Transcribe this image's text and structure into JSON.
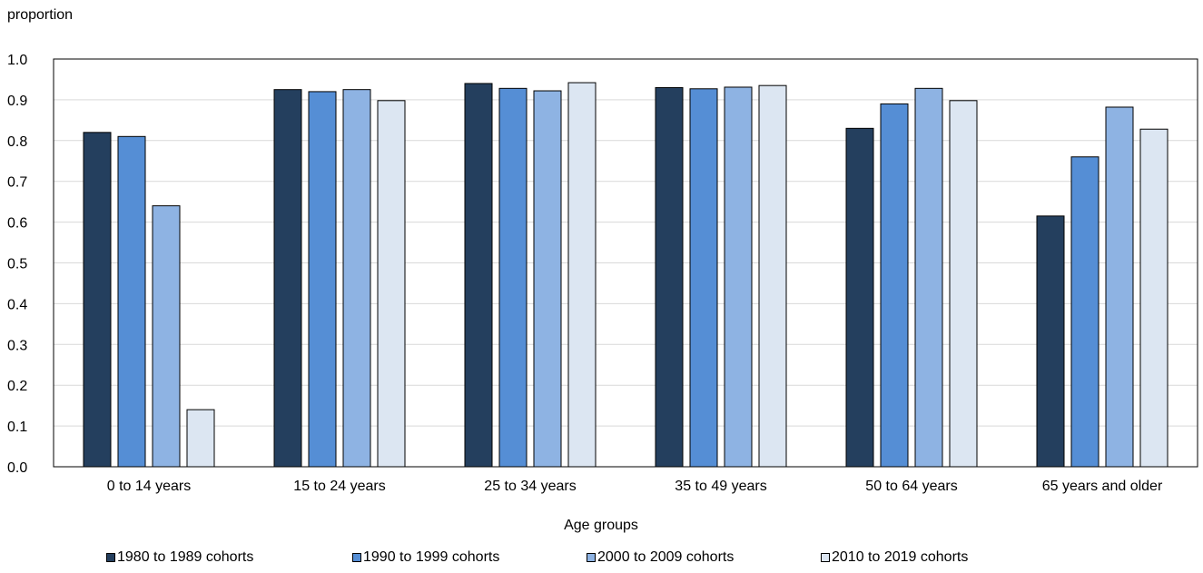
{
  "chart_data": {
    "type": "bar",
    "title": "",
    "ylabel": "proportion",
    "xlabel": "Age groups",
    "ylim": [
      0,
      1.0
    ],
    "yticks": [
      "0.0",
      "0.1",
      "0.2",
      "0.3",
      "0.4",
      "0.5",
      "0.6",
      "0.7",
      "0.8",
      "0.9",
      "1.0"
    ],
    "grid": true,
    "legend_position": "bottom",
    "categories": [
      "0 to 14 years",
      "15 to 24 years",
      "25 to 34 years",
      "35 to 49 years",
      "50 to 64 years",
      "65 years and older"
    ],
    "series": [
      {
        "name": "1980 to 1989 cohorts",
        "color": "#243F5E",
        "values": [
          0.82,
          0.925,
          0.94,
          0.93,
          0.83,
          0.615
        ]
      },
      {
        "name": "1990 to 1999 cohorts",
        "color": "#558ED5",
        "values": [
          0.81,
          0.92,
          0.928,
          0.927,
          0.89,
          0.76
        ]
      },
      {
        "name": "2000 to 2009 cohorts",
        "color": "#8EB3E3",
        "values": [
          0.64,
          0.925,
          0.922,
          0.931,
          0.928,
          0.882
        ]
      },
      {
        "name": "2010 to 2019 cohorts",
        "color": "#DCE6F2",
        "values": [
          0.14,
          0.898,
          0.942,
          0.935,
          0.898,
          0.828
        ]
      }
    ]
  }
}
